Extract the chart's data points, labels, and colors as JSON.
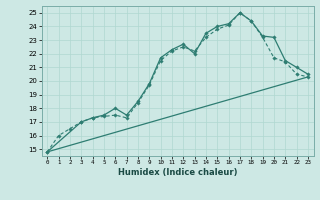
{
  "xlabel": "Humidex (Indice chaleur)",
  "x_ticks": [
    0,
    1,
    2,
    3,
    4,
    5,
    6,
    7,
    8,
    9,
    10,
    11,
    12,
    13,
    14,
    15,
    16,
    17,
    18,
    19,
    20,
    21,
    22,
    23
  ],
  "xlim": [
    -0.5,
    23.5
  ],
  "ylim": [
    14.5,
    25.5
  ],
  "y_ticks": [
    15,
    16,
    17,
    18,
    19,
    20,
    21,
    22,
    23,
    24,
    25
  ],
  "bg_color": "#cde8e4",
  "line_color": "#2e7d72",
  "grid_color": "#b0d8d0",
  "series1_x": [
    0,
    1,
    2,
    3,
    4,
    5,
    6,
    7,
    8,
    9,
    10,
    11,
    12,
    13,
    14,
    15,
    16,
    17,
    18,
    19,
    20,
    21,
    22,
    23
  ],
  "series1_y": [
    14.8,
    16.0,
    16.5,
    17.0,
    17.3,
    17.4,
    17.5,
    17.3,
    18.4,
    19.7,
    21.5,
    22.2,
    22.5,
    22.2,
    23.2,
    23.8,
    24.1,
    25.0,
    24.4,
    23.2,
    21.7,
    21.4,
    20.5,
    20.3
  ],
  "series2_x": [
    0,
    3,
    4,
    5,
    6,
    7,
    8,
    9,
    10,
    11,
    12,
    13,
    14,
    15,
    16,
    17,
    18,
    19,
    20,
    21,
    22,
    23
  ],
  "series2_y": [
    14.8,
    17.0,
    17.3,
    17.5,
    18.0,
    17.5,
    18.5,
    19.8,
    21.7,
    22.3,
    22.7,
    22.0,
    23.5,
    24.0,
    24.2,
    25.0,
    24.4,
    23.3,
    23.2,
    21.5,
    21.0,
    20.5
  ],
  "series3_x": [
    0,
    23
  ],
  "series3_y": [
    14.8,
    20.3
  ]
}
